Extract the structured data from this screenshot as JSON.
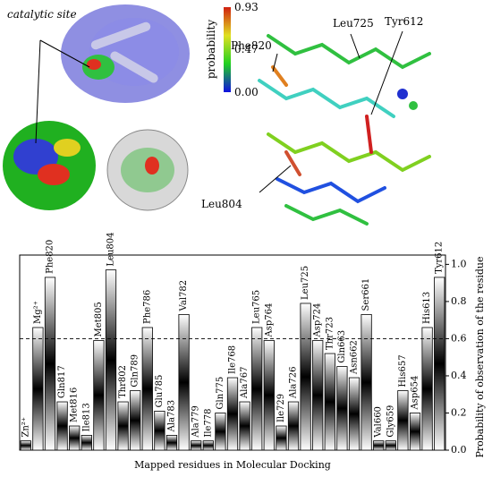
{
  "chart_data": {
    "type": "bar",
    "xlabel": "Mapped residues in Molecular Docking",
    "ylabel": "Probability of observation of the residue",
    "categories": [
      "Zn²⁺",
      "Mg²⁺",
      "Phe820",
      "Gln817",
      "Met816",
      "Ile813",
      "Met805",
      "Leu804",
      "Thr802",
      "Gln789",
      "Phe786",
      "Glu785",
      "Ala783",
      "Val782",
      "Ala779",
      "Ile778",
      "Gln775",
      "Ile768",
      "Ala767",
      "Leu765",
      "Asp764",
      "Ile729",
      "Ala726",
      "Leu725",
      "Asp724",
      "Thr723",
      "Gln663",
      "Asn662",
      "Ser661",
      "Val660",
      "Gly659",
      "His657",
      "Asp654",
      "His613",
      "Tyr612"
    ],
    "values": [
      0.05,
      0.66,
      0.93,
      0.26,
      0.13,
      0.08,
      0.59,
      0.97,
      0.26,
      0.32,
      0.66,
      0.21,
      0.08,
      0.73,
      0.05,
      0.05,
      0.2,
      0.39,
      0.26,
      0.66,
      0.59,
      0.13,
      0.26,
      0.79,
      0.59,
      0.52,
      0.45,
      0.39,
      0.73,
      0.05,
      0.05,
      0.32,
      0.2,
      0.66,
      0.93
    ],
    "color": "#000000",
    "ylim": [
      0,
      1.05
    ],
    "yticks": [
      {
        "value": 0,
        "label": "0.0"
      },
      0.2,
      0.4,
      0.6,
      0.8,
      {
        "value": 1,
        "label": "1.0"
      }
    ],
    "reference_line": 0.6
  },
  "molecular_panel": {
    "catalytic_site_label": "catalytic site",
    "colorbar": {
      "label": "probability",
      "ticks": [
        {
          "value": 0,
          "label": "0.00"
        },
        0.47,
        0.93
      ],
      "colors": [
        "#1010e0",
        "#20d020",
        "#e0e020",
        "#d02010"
      ]
    },
    "residue_labels": [
      "Phe820",
      "Leu725",
      "Tyr612",
      "Leu804"
    ]
  }
}
